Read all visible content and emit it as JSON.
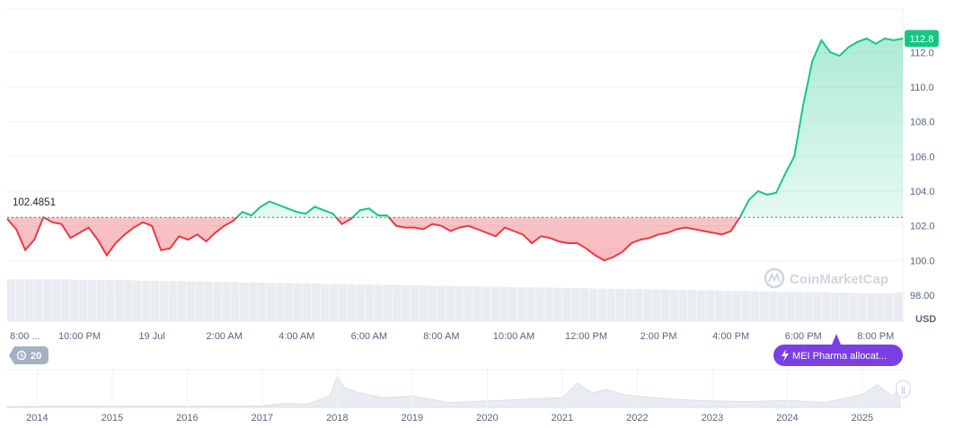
{
  "chart_data": [
    {
      "type": "line",
      "baseline": {
        "value": 102.4851,
        "label": "102.4851"
      },
      "last_price": {
        "value": 112.8,
        "label": "112.8"
      },
      "colors": {
        "up": "#16c784",
        "down": "#ea3943",
        "baseline_line": "#5b6b84",
        "badge": "#16c784"
      },
      "ylim": [
        96.5,
        114.5
      ],
      "y_ticks": [
        {
          "value": 98,
          "label": "98.00"
        },
        {
          "value": 100,
          "label": "100.0"
        },
        {
          "value": 102,
          "label": "102.0"
        },
        {
          "value": 104,
          "label": "104.0"
        },
        {
          "value": 106,
          "label": "106.0"
        },
        {
          "value": 108,
          "label": "108.0"
        },
        {
          "value": 110,
          "label": "110.0"
        },
        {
          "value": 112,
          "label": "112.0"
        }
      ],
      "unit_label": "USD",
      "x_ticks": [
        "8:00 ...",
        "10:00 PM",
        "19 Jul",
        "2:00 AM",
        "4:00 AM",
        "6:00 AM",
        "8:00 AM",
        "10:00 AM",
        "12:00 PM",
        "2:00 PM",
        "4:00 PM",
        "6:00 PM",
        "8:00 PM"
      ],
      "x_tick_time_hours": [
        0,
        2,
        4,
        6,
        8,
        10,
        12,
        14,
        16,
        18,
        20,
        22,
        24
      ],
      "series": [
        {
          "time_hours": [
            0,
            0.25,
            0.5,
            0.75,
            1,
            1.25,
            1.5,
            1.75,
            2,
            2.25,
            2.5,
            2.75,
            3,
            3.25,
            3.5,
            3.75,
            4,
            4.25,
            4.5,
            4.75,
            5,
            5.25,
            5.5,
            5.75,
            6,
            6.25,
            6.5,
            6.75,
            7,
            7.25,
            7.5,
            7.75,
            8,
            8.25,
            8.5,
            8.75,
            9,
            9.25,
            9.5,
            9.75,
            10,
            10.25,
            10.5,
            10.75,
            11,
            11.25,
            11.5,
            11.75,
            12,
            12.25,
            12.5,
            12.75,
            13,
            13.25,
            13.5,
            13.75,
            14,
            14.25,
            14.5,
            14.75,
            15,
            15.25,
            15.5,
            15.75,
            16,
            16.25,
            16.5,
            16.75,
            17,
            17.25,
            17.5,
            17.75,
            18,
            18.25,
            18.5,
            18.75,
            19,
            19.25,
            19.5,
            19.75,
            20,
            20.25,
            20.5,
            20.75,
            21,
            21.25,
            21.5,
            21.75,
            22,
            22.25,
            22.5,
            22.75,
            23,
            23.25,
            23.5,
            23.75,
            24,
            24.25,
            24.5,
            24.75
          ],
          "values": [
            102.4,
            101.8,
            100.6,
            101.2,
            102.5,
            102.2,
            102.1,
            101.3,
            101.6,
            101.9,
            101.2,
            100.3,
            101.0,
            101.5,
            101.9,
            102.2,
            102.0,
            100.6,
            100.7,
            101.4,
            101.2,
            101.5,
            101.1,
            101.6,
            102.0,
            102.3,
            102.8,
            102.6,
            103.1,
            103.4,
            103.2,
            103.0,
            102.8,
            102.7,
            103.1,
            102.9,
            102.7,
            102.1,
            102.4,
            102.9,
            103.0,
            102.6,
            102.6,
            102.0,
            101.9,
            101.9,
            101.8,
            102.1,
            102.0,
            101.7,
            101.9,
            102.0,
            101.8,
            101.6,
            101.4,
            101.9,
            101.7,
            101.5,
            101.0,
            101.4,
            101.3,
            101.1,
            101.0,
            101.0,
            100.7,
            100.3,
            100.0,
            100.2,
            100.5,
            101.0,
            101.2,
            101.3,
            101.5,
            101.6,
            101.8,
            101.9,
            101.8,
            101.7,
            101.6,
            101.5,
            101.7,
            102.5,
            103.5,
            104.0,
            103.8,
            103.9,
            105.0,
            106.0,
            109.0,
            111.5,
            112.7,
            112.0,
            111.8,
            112.3,
            112.6,
            112.8,
            112.5,
            112.8,
            112.7,
            112.8
          ],
          "volume_share": [
            0.9,
            0.9,
            0.9,
            0.9,
            0.9,
            0.9,
            0.9,
            0.89,
            0.89,
            0.89,
            0.88,
            0.88,
            0.88,
            0.88,
            0.87,
            0.87,
            0.87,
            0.86,
            0.86,
            0.86,
            0.85,
            0.85,
            0.85,
            0.84,
            0.84,
            0.84,
            0.83,
            0.83,
            0.83,
            0.82,
            0.82,
            0.82,
            0.81,
            0.81,
            0.81,
            0.8,
            0.8,
            0.8,
            0.79,
            0.79,
            0.79,
            0.78,
            0.78,
            0.78,
            0.77,
            0.77,
            0.77,
            0.76,
            0.76,
            0.76,
            0.75,
            0.75,
            0.75,
            0.74,
            0.74,
            0.74,
            0.73,
            0.73,
            0.73,
            0.72,
            0.72,
            0.72,
            0.71,
            0.71,
            0.71,
            0.7,
            0.7,
            0.7,
            0.69,
            0.69,
            0.69,
            0.68,
            0.68,
            0.68,
            0.67,
            0.67,
            0.67,
            0.66,
            0.66,
            0.66,
            0.65,
            0.65,
            0.65,
            0.64,
            0.64,
            0.64,
            0.63,
            0.63,
            0.63,
            0.62,
            0.62,
            0.62,
            0.61,
            0.61,
            0.61,
            0.6,
            0.6,
            0.6,
            0.6,
            0.62
          ]
        }
      ]
    },
    {
      "type": "area",
      "x_ticks": [
        "2014",
        "2015",
        "2016",
        "2017",
        "2018",
        "2019",
        "2020",
        "2021",
        "2022",
        "2023",
        "2024",
        "2025"
      ],
      "x_tick_year": [
        2014,
        2015,
        2016,
        2017,
        2018,
        2019,
        2020,
        2021,
        2022,
        2023,
        2024,
        2025
      ],
      "series": [
        {
          "year": [
            2013.6,
            2014,
            2014.5,
            2015,
            2015.5,
            2016,
            2016.5,
            2017,
            2017.3,
            2017.6,
            2017.9,
            2018,
            2018.1,
            2018.3,
            2018.6,
            2019,
            2019.5,
            2020,
            2020.5,
            2021,
            2021.2,
            2021.4,
            2021.6,
            2021.8,
            2022,
            2022.5,
            2023,
            2023.5,
            2024,
            2024.5,
            2025,
            2025.2,
            2025.4,
            2025.5
          ],
          "relative_level": [
            0.02,
            0.03,
            0.03,
            0.03,
            0.03,
            0.03,
            0.04,
            0.05,
            0.12,
            0.1,
            0.35,
            0.95,
            0.6,
            0.45,
            0.3,
            0.35,
            0.15,
            0.2,
            0.25,
            0.3,
            0.75,
            0.45,
            0.55,
            0.4,
            0.35,
            0.25,
            0.2,
            0.18,
            0.22,
            0.15,
            0.4,
            0.7,
            0.35,
            0.6
          ]
        }
      ]
    }
  ],
  "watermark": {
    "text": "CoinMarketCap"
  },
  "history_badge": {
    "count": "20"
  },
  "news_badge": {
    "text": "MEI Pharma allocat..."
  },
  "navigator_handle": {
    "glyph": "||"
  }
}
